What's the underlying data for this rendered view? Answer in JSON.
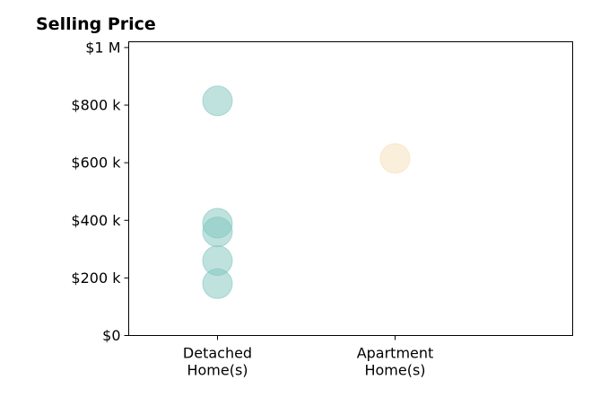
{
  "chart_data": {
    "type": "scatter",
    "title": "Selling Price",
    "xlabel": "",
    "ylabel": "",
    "categories": [
      [
        "Detached",
        "Home(s)"
      ],
      [
        "Apartment",
        "Home(s)"
      ]
    ],
    "y_ticks": [
      {
        "value": 0,
        "label": "$0"
      },
      {
        "value": 200000,
        "label": "$200 k"
      },
      {
        "value": 400000,
        "label": "$400 k"
      },
      {
        "value": 600000,
        "label": "$600 k"
      },
      {
        "value": 800000,
        "label": "$800 k"
      },
      {
        "value": 1000000,
        "label": "$1 M"
      }
    ],
    "ylim": [
      0,
      1020000
    ],
    "xlim": [
      -0.5,
      2.0
    ],
    "grid": false,
    "series": [
      {
        "category_index": 0,
        "color": "#80c6bd",
        "values": [
          815000,
          390000,
          360000,
          260000,
          180000
        ]
      },
      {
        "category_index": 1,
        "color": "#f5e0b8",
        "values": [
          615000
        ]
      }
    ]
  }
}
